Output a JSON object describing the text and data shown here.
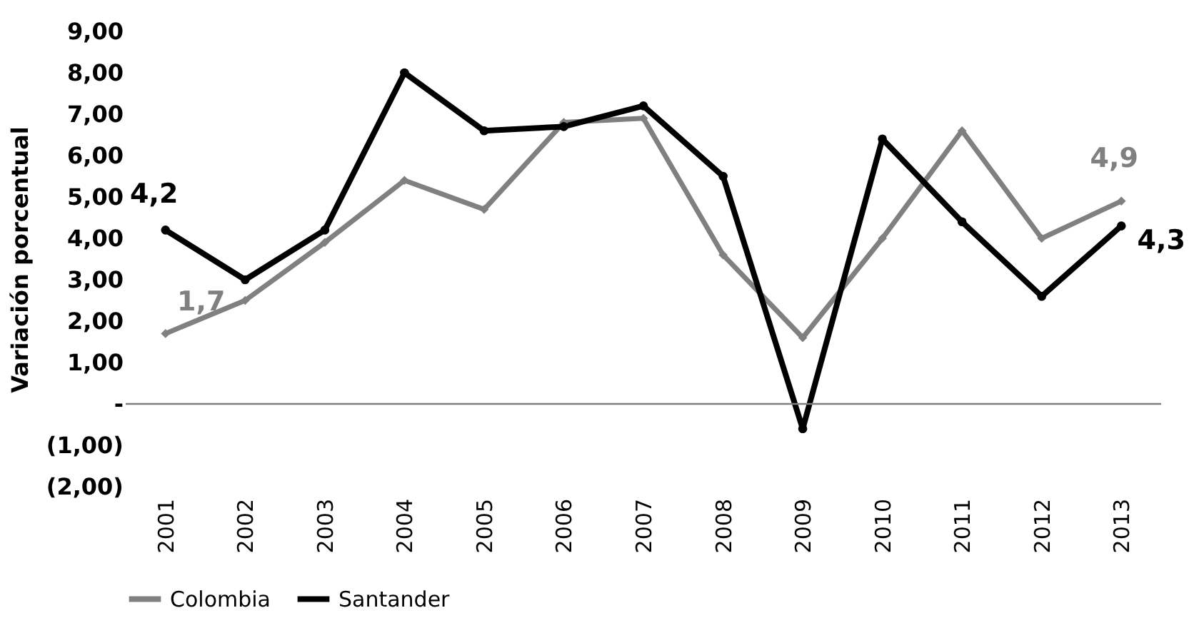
{
  "chart_data": {
    "type": "line",
    "ylabel": "Variación porcentual",
    "categories": [
      "2001",
      "2002",
      "2003",
      "2004",
      "2005",
      "2006",
      "2007",
      "2008",
      "2009",
      "2010",
      "2011",
      "2012",
      "2013"
    ],
    "series": [
      {
        "name": "Colombia",
        "color": "#808080",
        "marker": "diamond",
        "values": [
          1.7,
          2.5,
          3.9,
          5.4,
          4.7,
          6.8,
          6.9,
          3.6,
          1.6,
          4.0,
          6.6,
          4.0,
          4.9
        ],
        "value_labels": [
          "1,7",
          null,
          null,
          null,
          null,
          null,
          null,
          null,
          null,
          null,
          null,
          null,
          "4,9"
        ]
      },
      {
        "name": "Santander",
        "color": "#000000",
        "marker": "circle",
        "values": [
          4.2,
          3.0,
          4.2,
          8.0,
          6.6,
          6.7,
          7.2,
          5.5,
          -0.6,
          6.4,
          4.4,
          2.6,
          4.3
        ],
        "value_labels": [
          "4,2",
          null,
          null,
          null,
          null,
          null,
          null,
          null,
          null,
          null,
          null,
          null,
          "4,3"
        ]
      }
    ],
    "ylim": [
      -2,
      9
    ],
    "yticks": [
      {
        "value": 9,
        "label": "9,00"
      },
      {
        "value": 8,
        "label": "8,00"
      },
      {
        "value": 7,
        "label": "7,00"
      },
      {
        "value": 6,
        "label": "6,00"
      },
      {
        "value": 5,
        "label": "5,00"
      },
      {
        "value": 4,
        "label": "4,00"
      },
      {
        "value": 3,
        "label": "3,00"
      },
      {
        "value": 2,
        "label": "2,00"
      },
      {
        "value": 1,
        "label": "1,00"
      },
      {
        "value": 0,
        "label": "-"
      },
      {
        "value": -1,
        "label": "(1,00)"
      },
      {
        "value": -2,
        "label": "(2,00)"
      }
    ],
    "ref_lines": [
      {
        "axis": "y",
        "value": 0,
        "color": "#808080"
      }
    ],
    "grid": false,
    "legend": "bottom"
  }
}
